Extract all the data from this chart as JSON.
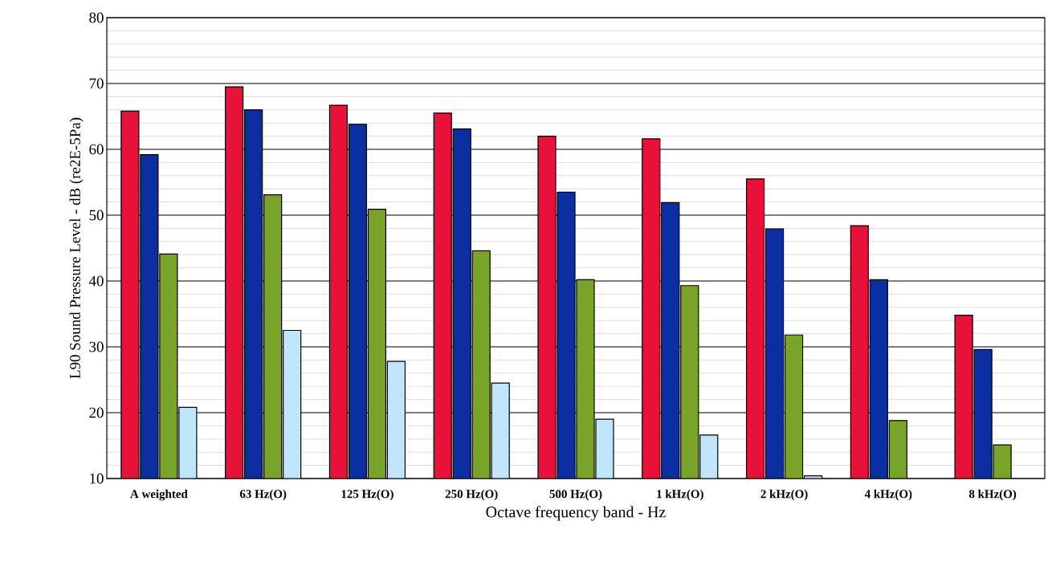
{
  "chart_data": {
    "type": "bar",
    "xlabel": "Octave frequency band - Hz",
    "ylabel": "L90 Sound Pressure Level - dB (re2E-5Pa)",
    "categories": [
      "A weighted",
      "63 Hz(O)",
      "125 Hz(O)",
      "250 Hz(O)",
      "500 Hz(O)",
      "1 kHz(O)",
      "2 kHz(O)",
      "4 kHz(O)",
      "8 kHz(O)"
    ],
    "series": [
      {
        "color": "#e8113a",
        "values": [
          65.8,
          69.5,
          66.7,
          65.5,
          62.0,
          61.6,
          55.5,
          48.4,
          34.8
        ]
      },
      {
        "color": "#0b2fa0",
        "values": [
          59.2,
          66.0,
          63.8,
          63.1,
          53.5,
          51.9,
          47.9,
          40.2,
          29.6
        ]
      },
      {
        "color": "#7aa32a",
        "values": [
          44.1,
          53.1,
          50.9,
          44.6,
          40.2,
          39.3,
          31.8,
          18.8,
          15.1
        ]
      },
      {
        "color": "#bfe6fa",
        "values": [
          20.8,
          32.5,
          27.8,
          24.5,
          19.0,
          16.6,
          10.4,
          null,
          null
        ]
      }
    ],
    "ylim": [
      10,
      80
    ],
    "yticks": [
      10,
      20,
      30,
      40,
      50,
      60,
      70,
      80
    ],
    "grid": "y"
  }
}
